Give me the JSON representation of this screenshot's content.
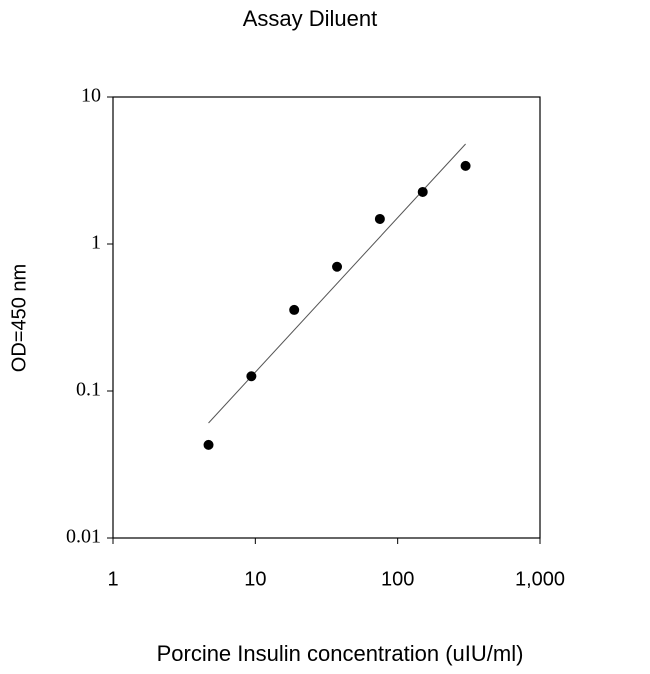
{
  "chart_data": {
    "type": "scatter",
    "title": "Assay Diluent",
    "x_label": "Porcine Insulin concentration (uIU/ml)",
    "y_label": "OD=450 nm",
    "x": [
      4.69,
      9.38,
      18.75,
      37.5,
      75,
      150,
      300
    ],
    "values": [
      0.043,
      0.126,
      0.356,
      0.7,
      1.48,
      2.26,
      3.4
    ],
    "color": "#000000",
    "trendline": {
      "x": [
        4.69,
        300
      ],
      "values": [
        0.0606,
        4.79
      ],
      "color": "#555555"
    },
    "log_x": true,
    "log_y": true,
    "xlim": [
      1,
      1000
    ],
    "ylim": [
      0.01,
      10
    ],
    "xticks": [
      1,
      10,
      100,
      {
        "value": 1000,
        "label": "1,000"
      }
    ],
    "yticks": [
      0.01,
      0.1,
      1,
      10
    ]
  }
}
